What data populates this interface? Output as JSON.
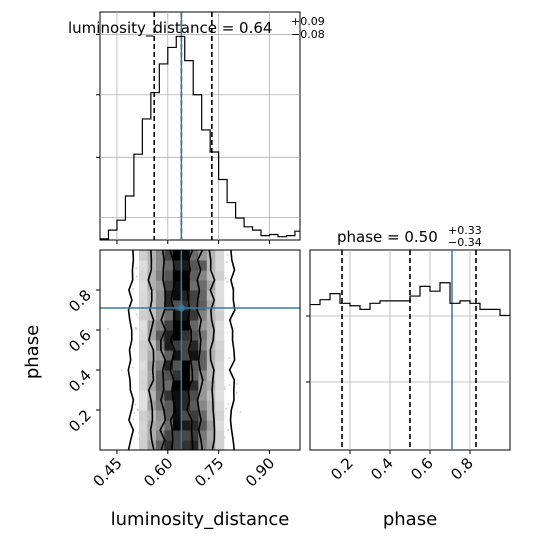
{
  "colors": {
    "truth": "#3a78a8",
    "hist": "#000000",
    "grid": "#b0b0b0"
  },
  "chart_data": [
    {
      "type": "histogram",
      "title": "luminosity_distance = 0.64",
      "title_sup": "+0.09",
      "title_sub": "−0.08",
      "xlim": [
        0.4,
        0.99
      ],
      "quantile_lines": [
        0.56,
        0.64,
        0.73
      ],
      "truth": 0.64,
      "bin_edges": [
        0.4,
        0.425,
        0.45,
        0.475,
        0.5,
        0.525,
        0.55,
        0.575,
        0.6,
        0.625,
        0.65,
        0.675,
        0.7,
        0.725,
        0.75,
        0.775,
        0.8,
        0.825,
        0.85,
        0.875,
        0.9,
        0.925,
        0.95,
        0.975,
        0.99
      ],
      "counts": [
        1,
        9,
        18,
        40,
        78,
        110,
        134,
        160,
        175,
        185,
        163,
        132,
        100,
        80,
        55,
        34,
        20,
        12,
        9,
        4,
        5,
        3,
        4,
        8
      ],
      "x_ticks": [
        0.45,
        0.6,
        0.75,
        0.9
      ],
      "y_ticklabels_shown": false
    },
    {
      "type": "histogram",
      "title": "phase = 0.50",
      "title_sup": "+0.33",
      "title_sub": "−0.34",
      "xlim": [
        0.0,
        1.0
      ],
      "quantile_lines": [
        0.16,
        0.5,
        0.83
      ],
      "truth": 0.71,
      "bin_edges": [
        0.0,
        0.05,
        0.1,
        0.15,
        0.2,
        0.25,
        0.3,
        0.35,
        0.4,
        0.45,
        0.5,
        0.55,
        0.6,
        0.65,
        0.7,
        0.75,
        0.8,
        0.85,
        0.9,
        0.95,
        1.0
      ],
      "counts": [
        120,
        124,
        129,
        121,
        119,
        116,
        121,
        123,
        123,
        123,
        127,
        135,
        131,
        138,
        121,
        123,
        121,
        116,
        116,
        111
      ],
      "x_ticks": [
        0.2,
        0.4,
        0.6,
        0.8
      ],
      "xlabel": "phase",
      "y_ticklabels_shown": false
    },
    {
      "type": "contour_density",
      "xlabel": "luminosity_distance",
      "ylabel": "phase",
      "xlim": [
        0.4,
        0.99
      ],
      "ylim": [
        0.0,
        1.0
      ],
      "x_ticks": [
        0.45,
        0.6,
        0.75,
        0.9
      ],
      "y_ticks": [
        0.2,
        0.4,
        0.6,
        0.8
      ],
      "truth": {
        "x": 0.64,
        "y": 0.71
      },
      "contour_levels_half_width": [
        0.025,
        0.055,
        0.09,
        0.15
      ],
      "center_x": 0.64
    }
  ]
}
